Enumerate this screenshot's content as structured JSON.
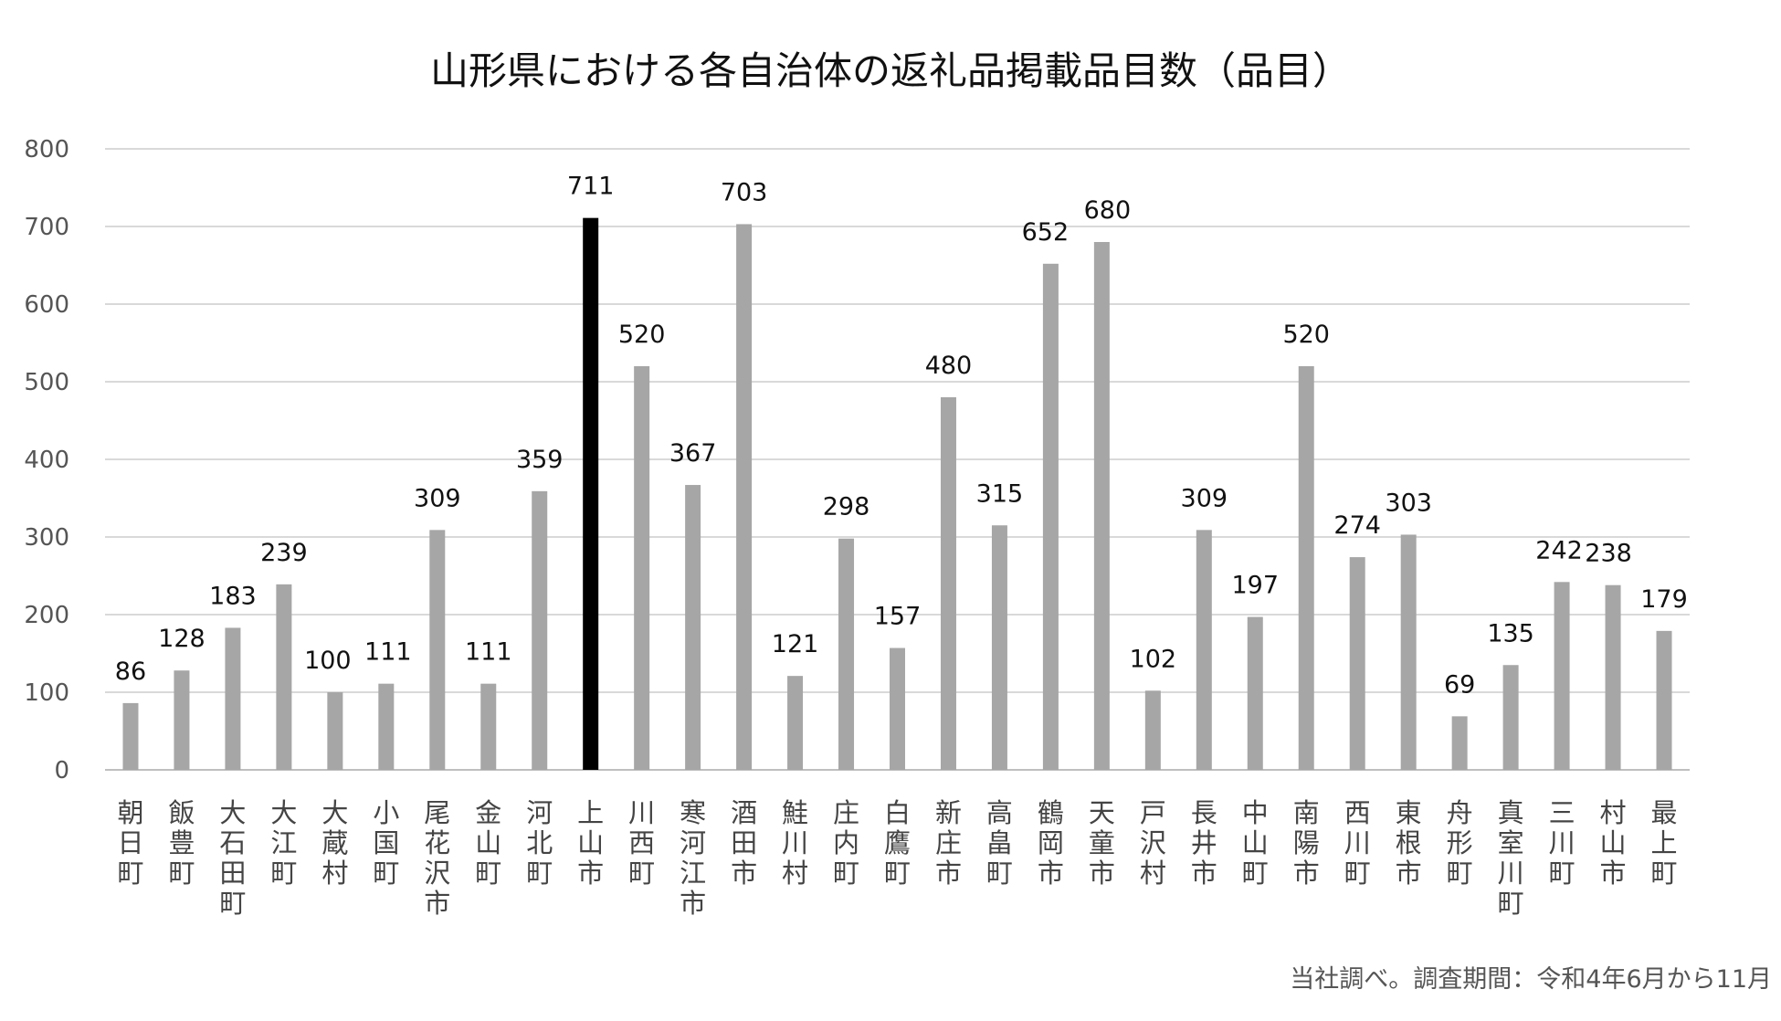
{
  "chart_data": {
    "type": "bar",
    "title": "山形県における各自治体の返礼品掲載品目数（品目）",
    "xlabel": "",
    "ylabel": "",
    "ylim": [
      0,
      800
    ],
    "yticks": [
      0,
      100,
      200,
      300,
      400,
      500,
      600,
      700,
      800
    ],
    "grid": true,
    "bar_color": "#a6a6a6",
    "highlight_color": "#000000",
    "highlight_category": "上山市",
    "categories": [
      "朝日町",
      "飯豊町",
      "大石田町",
      "大江町",
      "大蔵村",
      "小国町",
      "尾花沢市",
      "金山町",
      "河北町",
      "上山市",
      "川西町",
      "寒河江市",
      "酒田市",
      "鮭川村",
      "庄内町",
      "白鷹町",
      "新庄市",
      "高畠町",
      "鶴岡市",
      "天童市",
      "戸沢村",
      "長井市",
      "中山町",
      "南陽市",
      "西川町",
      "東根市",
      "舟形町",
      "真室川町",
      "三川町",
      "村山市",
      "最上町"
    ],
    "values": [
      86,
      128,
      183,
      239,
      100,
      111,
      309,
      111,
      359,
      711,
      520,
      367,
      703,
      121,
      298,
      157,
      480,
      315,
      652,
      680,
      102,
      309,
      197,
      520,
      274,
      303,
      69,
      135,
      242,
      238,
      179
    ]
  },
  "source_note": "当社調べ。調査期間：令和4年6月から11月"
}
